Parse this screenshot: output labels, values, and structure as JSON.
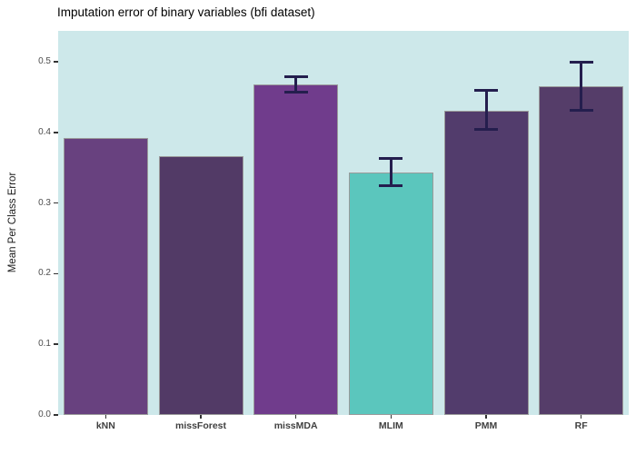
{
  "title": "Imputation error of binary variables (bfi dataset)",
  "chart_data": {
    "type": "bar",
    "title": "Imputation error of binary variables (bfi dataset)",
    "xlabel": "",
    "ylabel": "Mean Per Class Error",
    "categories": [
      "kNN",
      "missForest",
      "missMDA",
      "MLIM",
      "PMM",
      "RF"
    ],
    "values": [
      0.392,
      0.366,
      0.468,
      0.344,
      0.431,
      0.465
    ],
    "error_bars": [
      null,
      null,
      {
        "low": 0.455,
        "high": 0.481
      },
      {
        "low": 0.323,
        "high": 0.365
      },
      {
        "low": 0.402,
        "high": 0.462
      },
      {
        "low": 0.429,
        "high": 0.501
      }
    ],
    "bar_colors": [
      "#68417f",
      "#523a66",
      "#703c8c",
      "#5bc6bd",
      "#523c6c",
      "#553d69"
    ],
    "bar_border_color": "#9a9a9a",
    "error_bar_color": "#241e4e",
    "panel_background": "#cde8ea",
    "outer_background": "#ffffff",
    "axis_text_color": "#4d4d4d",
    "ylim": [
      0,
      0.544
    ],
    "yticks": [
      0.0,
      0.1,
      0.2,
      0.3,
      0.4,
      0.5
    ],
    "ytick_labels": [
      "0.0",
      "0.1",
      "0.2",
      "0.3",
      "0.4",
      "0.5"
    ],
    "grid": false,
    "legend": "none"
  }
}
